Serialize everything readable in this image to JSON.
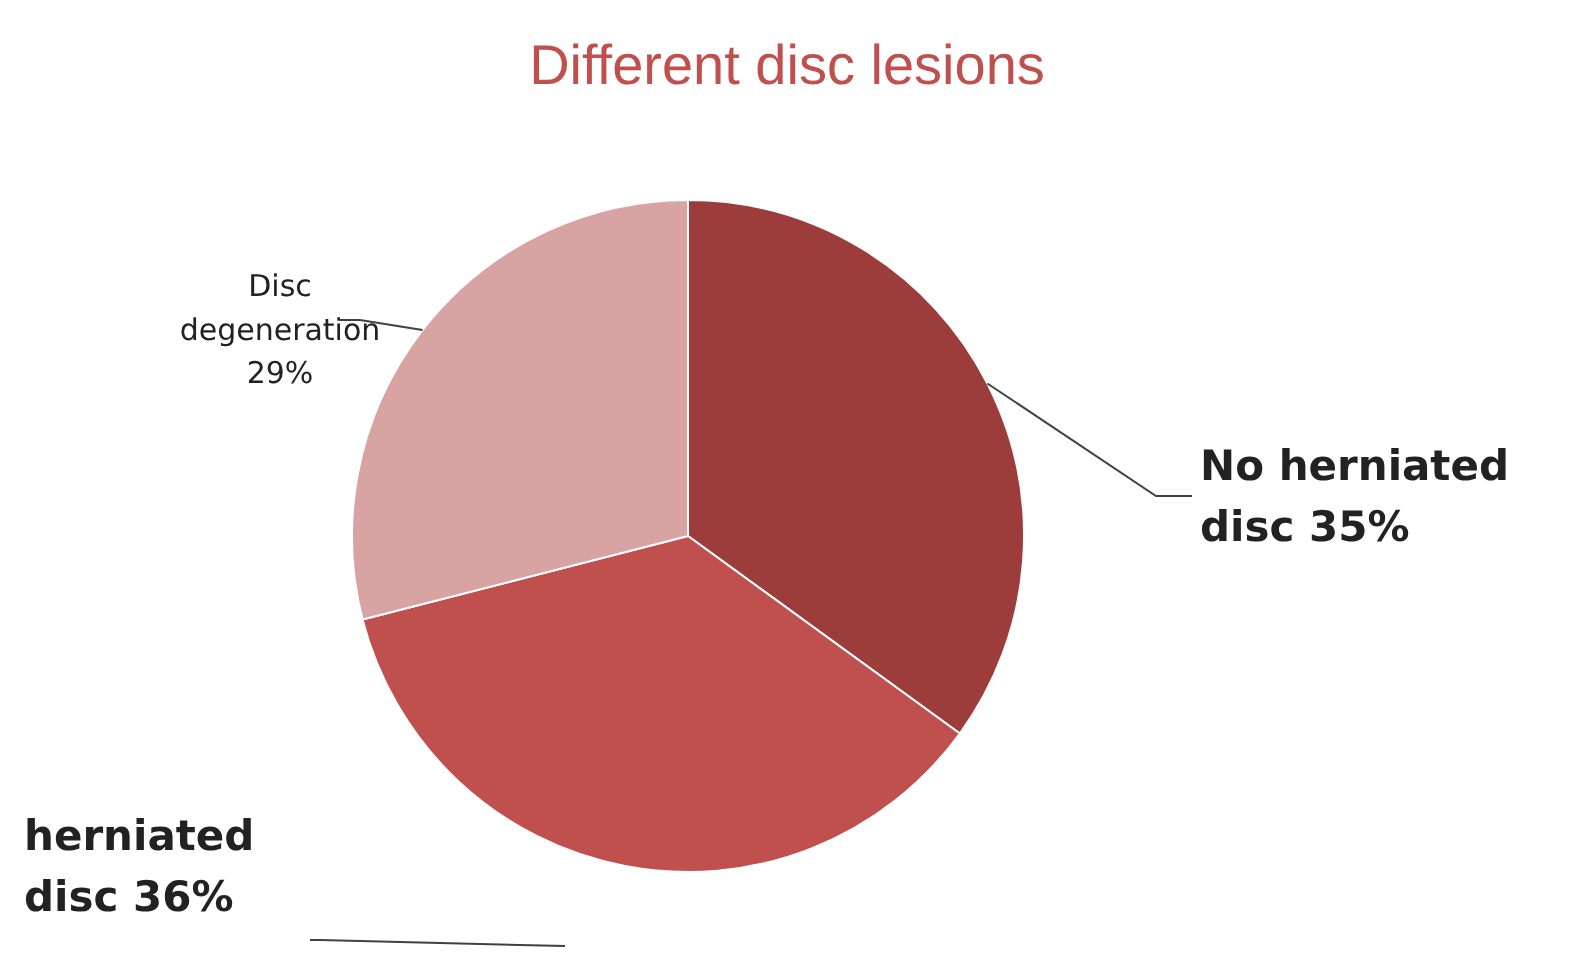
{
  "chart_data": {
    "type": "pie",
    "title": "Different disc lesions",
    "categories": [
      "No herniated disc",
      "herniated disc",
      "Disc degeneration"
    ],
    "values": [
      35,
      36,
      29
    ],
    "value_labels": [
      "35%",
      "36%",
      "29%"
    ],
    "colors": [
      "#9c3c3b",
      "#c0504d",
      "#d8a4a3"
    ]
  }
}
